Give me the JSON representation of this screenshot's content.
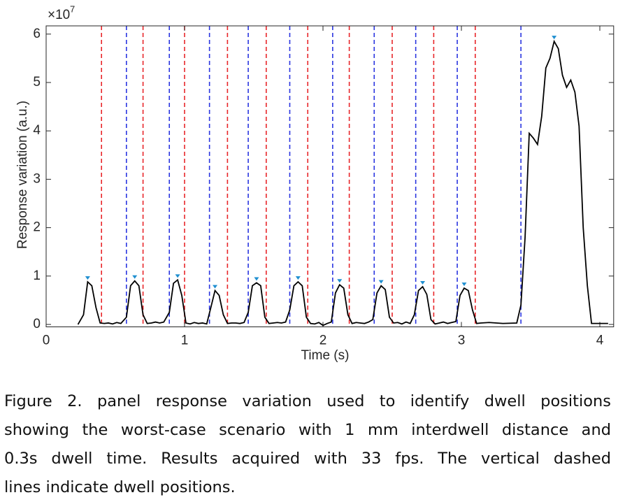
{
  "chart_data": {
    "type": "line",
    "xlabel": "Time (s)",
    "ylabel": "Response variation (a.u.)",
    "y_multiplier": {
      "base": "×10",
      "exponent": "7"
    },
    "xlim": [
      0,
      4.1
    ],
    "ylim": [
      -0.05,
      6.17
    ],
    "xticks": [
      0,
      1,
      2,
      3,
      4
    ],
    "yticks": [
      0,
      1,
      2,
      3,
      4,
      5,
      6
    ],
    "x": [
      0.23,
      0.27,
      0.3,
      0.33,
      0.36,
      0.39,
      0.42,
      0.45,
      0.48,
      0.51,
      0.54,
      0.58,
      0.61,
      0.64,
      0.67,
      0.7,
      0.73,
      0.76,
      0.79,
      0.82,
      0.85,
      0.89,
      0.92,
      0.95,
      0.98,
      1.01,
      1.04,
      1.07,
      1.1,
      1.13,
      1.16,
      1.19,
      1.22,
      1.25,
      1.28,
      1.31,
      1.34,
      1.37,
      1.4,
      1.43,
      1.46,
      1.49,
      1.52,
      1.55,
      1.58,
      1.61,
      1.64,
      1.67,
      1.7,
      1.73,
      1.76,
      1.79,
      1.82,
      1.85,
      1.88,
      1.91,
      1.94,
      1.97,
      2.0,
      2.03,
      2.06,
      2.09,
      2.12,
      2.15,
      2.18,
      2.21,
      2.24,
      2.27,
      2.3,
      2.33,
      2.36,
      2.39,
      2.42,
      2.45,
      2.48,
      2.51,
      2.54,
      2.57,
      2.6,
      2.63,
      2.66,
      2.69,
      2.72,
      2.75,
      2.78,
      2.81,
      2.84,
      2.87,
      2.9,
      2.93,
      2.96,
      2.99,
      3.02,
      3.05,
      3.08,
      3.11,
      3.14,
      3.2,
      3.3,
      3.4,
      3.43,
      3.46,
      3.49,
      3.52,
      3.55,
      3.58,
      3.61,
      3.64,
      3.67,
      3.7,
      3.73,
      3.76,
      3.79,
      3.82,
      3.85,
      3.88,
      3.91,
      3.94,
      4.0,
      4.06
    ],
    "series": [
      {
        "color": "#000000",
        "values": [
          0.0,
          0.2,
          0.88,
          0.8,
          0.35,
          0.03,
          0.02,
          0.03,
          0.01,
          0.04,
          0.02,
          0.15,
          0.8,
          0.9,
          0.8,
          0.2,
          0.02,
          0.03,
          0.05,
          0.03,
          0.05,
          0.25,
          0.85,
          0.92,
          0.6,
          0.03,
          0.01,
          0.04,
          0.02,
          0.03,
          0.01,
          0.35,
          0.7,
          0.6,
          0.2,
          0.02,
          0.03,
          0.03,
          0.02,
          0.04,
          0.25,
          0.8,
          0.86,
          0.8,
          0.15,
          0.02,
          0.03,
          0.04,
          0.03,
          0.05,
          0.3,
          0.8,
          0.88,
          0.8,
          0.15,
          0.02,
          0.01,
          0.04,
          -0.02,
          0.02,
          0.05,
          0.65,
          0.82,
          0.75,
          0.2,
          0.02,
          0.04,
          0.03,
          0.02,
          0.05,
          0.1,
          0.65,
          0.8,
          0.72,
          0.15,
          0.03,
          0.04,
          0.01,
          0.05,
          0.02,
          0.2,
          0.7,
          0.78,
          0.62,
          0.1,
          0.01,
          0.03,
          0.05,
          0.02,
          0.04,
          0.06,
          0.6,
          0.75,
          0.7,
          0.3,
          0.02,
          0.03,
          0.04,
          0.02,
          0.03,
          0.4,
          1.8,
          3.95,
          3.85,
          3.72,
          4.3,
          5.3,
          5.5,
          5.85,
          5.7,
          5.15,
          4.9,
          5.05,
          4.8,
          4.1,
          2.0,
          0.8,
          0.02,
          0.02,
          0.02
        ]
      }
    ],
    "peaks": {
      "color": "#1f8fd0",
      "x": [
        0.3,
        0.64,
        0.95,
        1.22,
        1.52,
        1.82,
        2.12,
        2.42,
        2.72,
        3.02,
        3.67
      ],
      "values": [
        0.88,
        0.9,
        0.92,
        0.7,
        0.86,
        0.88,
        0.82,
        0.8,
        0.78,
        0.75,
        5.85
      ]
    },
    "dwell_lines": [
      {
        "color": "#e8262a",
        "x": [
          0.4,
          0.7,
          1.0,
          1.31,
          1.59,
          1.89,
          2.19,
          2.5,
          2.8,
          3.1
        ]
      },
      {
        "color": "#2a35e0",
        "x": [
          0.58,
          0.89,
          1.18,
          1.46,
          1.76,
          2.07,
          2.37,
          2.67,
          2.97,
          3.43
        ]
      }
    ]
  },
  "caption": {
    "lines": [
      "Figure 2. panel response variation used to identify dwell positions",
      "showing the worst-case scenario with 1 mm interdwell distance and",
      "0.3s dwell time. Results acquired with 33 fps. The vertical dashed",
      "lines indicate dwell positions."
    ]
  }
}
